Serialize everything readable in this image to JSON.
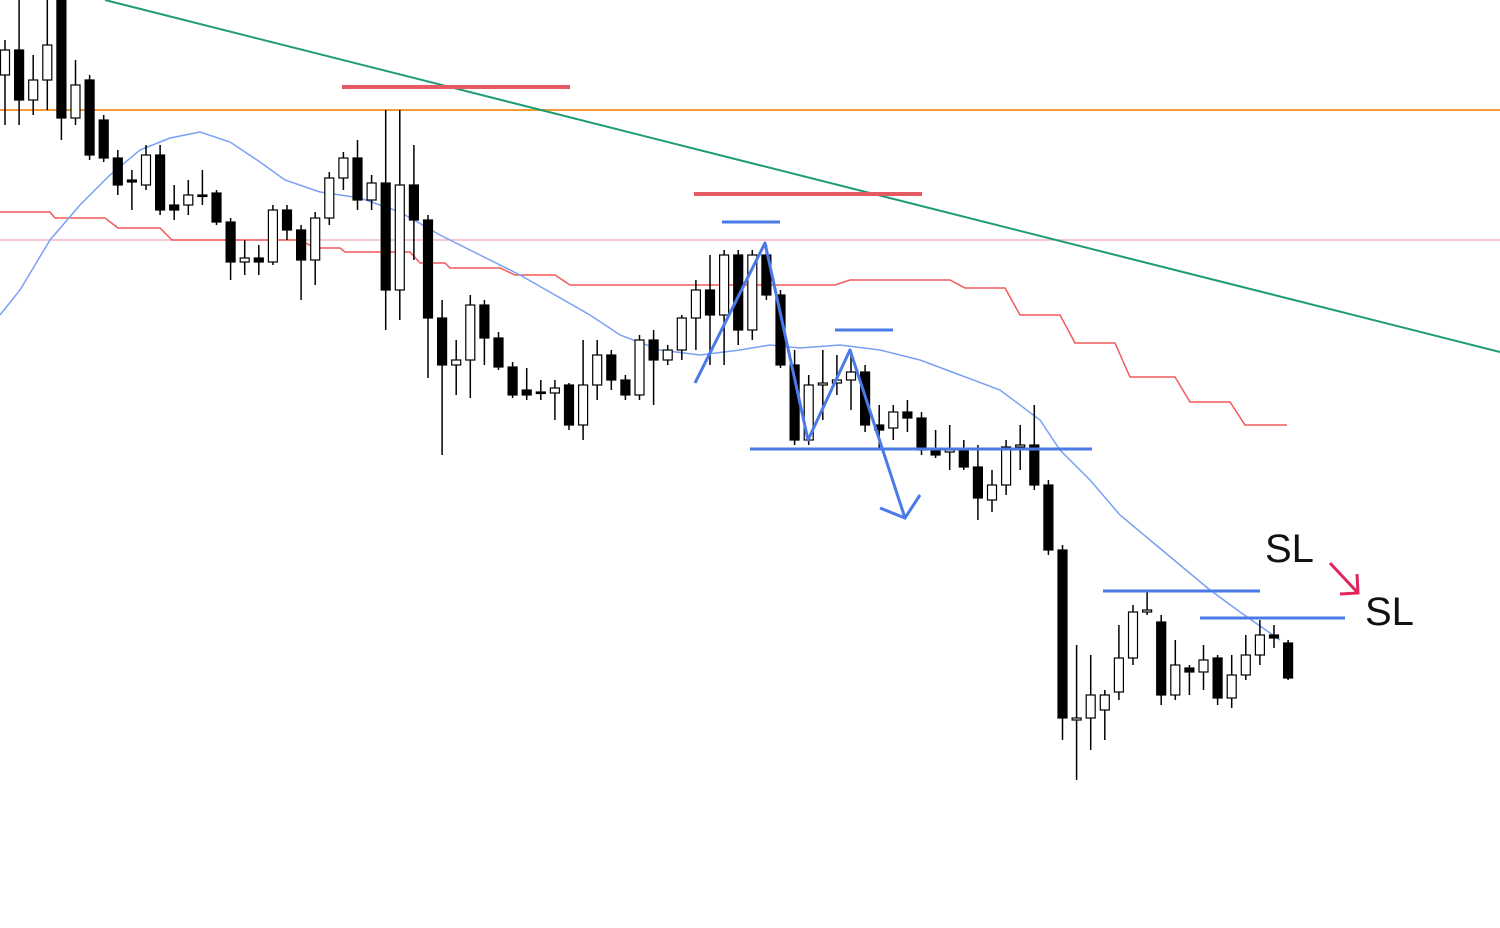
{
  "chart_data": {
    "type": "candlestick",
    "ylim": [
      0,
      928
    ],
    "annotations": [
      "SL",
      "SL"
    ],
    "open": [
      853,
      878,
      828,
      848,
      928,
      810,
      848,
      808,
      770,
      748,
      743,
      773,
      723,
      723,
      733,
      735,
      706,
      666,
      670,
      666,
      718,
      698,
      668,
      710,
      750,
      770,
      728,
      745,
      638,
      743,
      708,
      610,
      563,
      568,
      623,
      590,
      561,
      538,
      536,
      535,
      543,
      503,
      543,
      573,
      548,
      533,
      588,
      568,
      578,
      610,
      638,
      613,
      673,
      598,
      673,
      633,
      563,
      488,
      543,
      545,
      548,
      556,
      503,
      500,
      516,
      510,
      478,
      476,
      478,
      461,
      428,
      443,
      481,
      483,
      443,
      378,
      208,
      210,
      218,
      236,
      270,
      316,
      306,
      233,
      260,
      256,
      270,
      230,
      253,
      273,
      293,
      285
    ],
    "high": [
      888,
      928,
      873,
      928,
      928,
      868,
      853,
      813,
      778,
      758,
      783,
      783,
      743,
      748,
      758,
      738,
      710,
      688,
      683,
      723,
      723,
      703,
      716,
      756,
      776,
      788,
      753,
      818,
      818,
      783,
      713,
      628,
      588,
      633,
      628,
      596,
      566,
      560,
      548,
      548,
      545,
      588,
      588,
      578,
      553,
      593,
      598,
      583,
      613,
      648,
      673,
      678,
      678,
      678,
      683,
      638,
      578,
      553,
      578,
      573,
      578,
      563,
      523,
      523,
      528,
      516,
      498,
      503,
      488,
      483,
      458,
      488,
      503,
      523,
      448,
      383,
      283,
      273,
      238,
      303,
      323,
      336,
      313,
      288,
      263,
      283,
      273,
      273,
      293,
      308,
      303,
      288
    ],
    "low": [
      803,
      803,
      813,
      818,
      788,
      803,
      768,
      766,
      733,
      718,
      738,
      713,
      708,
      713,
      723,
      703,
      648,
      653,
      653,
      663,
      688,
      628,
      643,
      703,
      738,
      718,
      718,
      598,
      608,
      668,
      550,
      473,
      533,
      530,
      563,
      558,
      530,
      528,
      528,
      508,
      498,
      488,
      528,
      538,
      528,
      528,
      523,
      563,
      568,
      578,
      563,
      563,
      583,
      588,
      628,
      560,
      483,
      483,
      508,
      533,
      518,
      496,
      478,
      488,
      496,
      473,
      470,
      458,
      458,
      408,
      416,
      433,
      458,
      438,
      373,
      188,
      148,
      178,
      188,
      228,
      263,
      313,
      223,
      228,
      233,
      238,
      223,
      220,
      248,
      263,
      280,
      248
    ],
    "close": [
      878,
      828,
      848,
      883,
      810,
      843,
      773,
      770,
      743,
      746,
      773,
      718,
      718,
      733,
      733,
      706,
      666,
      670,
      666,
      718,
      698,
      668,
      710,
      750,
      770,
      728,
      745,
      638,
      743,
      708,
      610,
      563,
      568,
      623,
      590,
      561,
      533,
      533,
      535,
      540,
      503,
      543,
      573,
      548,
      533,
      588,
      568,
      578,
      610,
      638,
      613,
      673,
      598,
      673,
      633,
      563,
      488,
      543,
      545,
      548,
      556,
      503,
      498,
      516,
      510,
      478,
      473,
      478,
      461,
      430,
      443,
      481,
      483,
      443,
      378,
      210,
      210,
      233,
      233,
      270,
      316,
      318,
      233,
      263,
      256,
      268,
      230,
      253,
      273,
      293,
      290,
      250
    ]
  }
}
